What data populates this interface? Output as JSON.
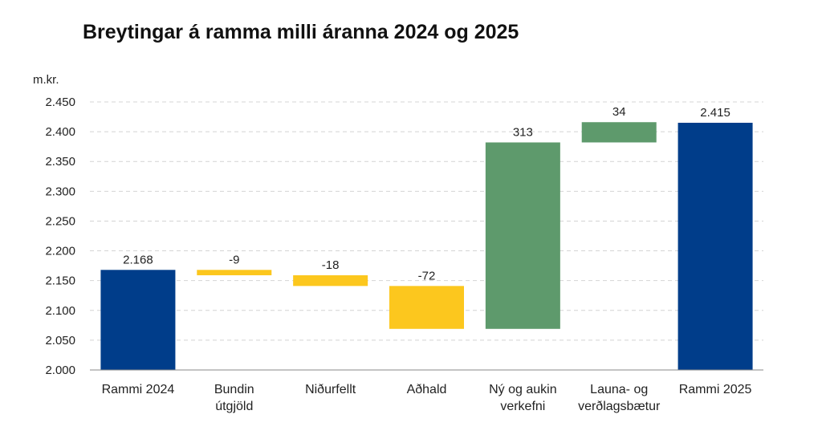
{
  "chart_data": {
    "type": "bar",
    "subtype": "waterfall",
    "title": "Breytingar á ramma milli áranna 2024 og 2025",
    "ylabel": "m.kr.",
    "ylim": [
      2000,
      2450
    ],
    "yticks": [
      "2.000",
      "2.050",
      "2.100",
      "2.150",
      "2.200",
      "2.250",
      "2.300",
      "2.350",
      "2.400",
      "2.450"
    ],
    "grid": true,
    "categories": [
      [
        "Rammi 2024"
      ],
      [
        "Bundin",
        "útgjöld"
      ],
      [
        "Niðurfellt"
      ],
      [
        "Aðhald"
      ],
      [
        "Ný og aukin",
        "verkefni"
      ],
      [
        "Launa- og",
        "verðlagsbætur"
      ],
      [
        "Rammi 2025"
      ]
    ],
    "steps": [
      {
        "kind": "total",
        "value": 2168,
        "label": "2.168"
      },
      {
        "kind": "decrease",
        "value": -9,
        "label": "-9"
      },
      {
        "kind": "decrease",
        "value": -18,
        "label": "-18"
      },
      {
        "kind": "decrease",
        "value": -72,
        "label": "-72"
      },
      {
        "kind": "increase",
        "value": 313,
        "label": "313"
      },
      {
        "kind": "increase",
        "value": 34,
        "label": "34"
      },
      {
        "kind": "total",
        "value": 2415,
        "label": "2.415"
      }
    ],
    "colors": {
      "total": "#003d8a",
      "decrease": "#fcc71e",
      "increase": "#5e9a6c",
      "grid": "#d4d4d4",
      "axis": "#8a8a8a"
    }
  }
}
